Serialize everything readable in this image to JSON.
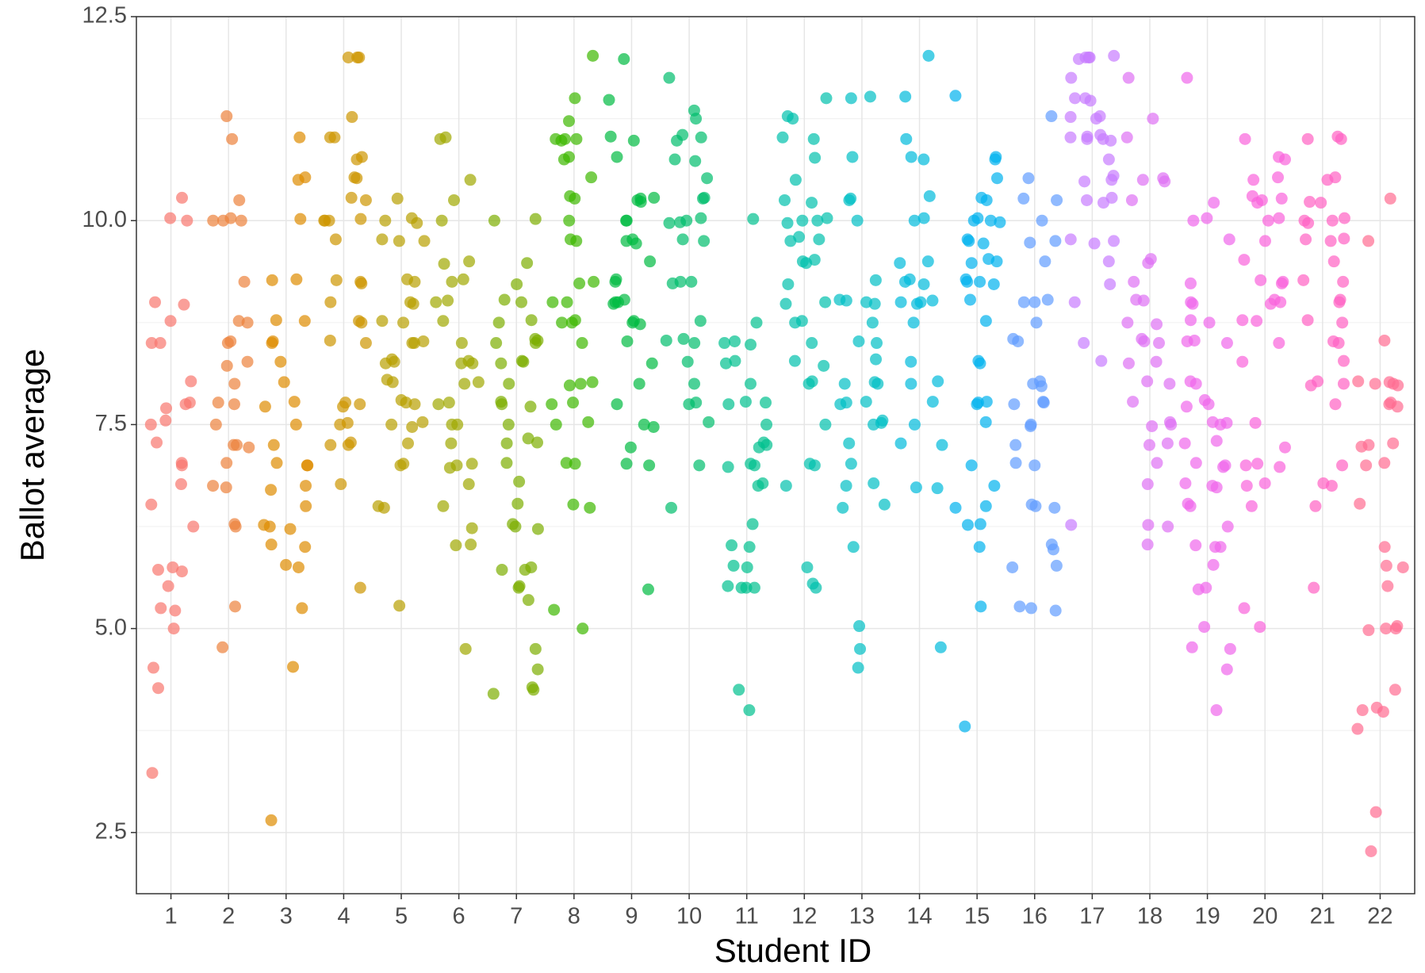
{
  "chart_data": {
    "type": "strip",
    "x_label": "Student ID",
    "y_label": "Ballot average",
    "categories": [
      "1",
      "2",
      "3",
      "4",
      "5",
      "6",
      "7",
      "8",
      "9",
      "10",
      "11",
      "12",
      "13",
      "14",
      "15",
      "16",
      "17",
      "18",
      "19",
      "20",
      "21",
      "22"
    ],
    "colors": [
      "#F8766D",
      "#EC823C",
      "#DE8C00",
      "#CD9600",
      "#B8A000",
      "#9FA800",
      "#7CAE00",
      "#3DB800",
      "#00BA42",
      "#00BE6C",
      "#00C08F",
      "#00C1AD",
      "#00BFC4",
      "#00BADB",
      "#00B2EE",
      "#619CFF",
      "#C77CFF",
      "#DE71F4",
      "#EF67EB",
      "#FA62DB",
      "#FF61C3",
      "#FF6C91"
    ],
    "alpha": 0.7,
    "values": [
      [
        10.28,
        10.0,
        9.0,
        8.97,
        8.77,
        8.5,
        8.5,
        8.03,
        7.77,
        7.75,
        7.55,
        7.5,
        7.28,
        7.03,
        7.0,
        6.77,
        6.52,
        6.25,
        5.75,
        5.72,
        5.52,
        5.25,
        5.22,
        5.0,
        4.52,
        4.27,
        3.23,
        10.03,
        7.7,
        5.7
      ],
      [
        11.28,
        11.0,
        10.25,
        10.03,
        10.0,
        10.0,
        9.25,
        8.77,
        8.75,
        8.52,
        8.5,
        8.27,
        8.22,
        7.77,
        7.75,
        7.5,
        7.25,
        7.22,
        7.03,
        6.75,
        6.73,
        6.28,
        6.25,
        5.27,
        4.77,
        10.0,
        8.0,
        7.25
      ],
      [
        11.02,
        10.53,
        10.5,
        10.02,
        9.28,
        9.27,
        8.78,
        8.77,
        8.52,
        8.5,
        8.27,
        8.02,
        7.78,
        7.72,
        7.5,
        7.25,
        7.03,
        7.0,
        7.0,
        6.75,
        6.7,
        6.5,
        6.27,
        6.25,
        6.22,
        6.03,
        6.0,
        5.78,
        5.75,
        5.25,
        4.53,
        2.65
      ],
      [
        12.0,
        12.0,
        12.0,
        11.27,
        11.02,
        11.02,
        10.78,
        10.75,
        10.53,
        10.52,
        10.28,
        10.25,
        10.02,
        10.0,
        10.0,
        10.0,
        9.77,
        9.27,
        9.25,
        9.23,
        9.0,
        8.77,
        8.75,
        8.53,
        8.5,
        7.77,
        7.75,
        7.72,
        7.52,
        7.5,
        7.28,
        7.25,
        7.25,
        6.77,
        5.5
      ],
      [
        10.27,
        10.03,
        10.0,
        9.97,
        9.77,
        9.75,
        9.75,
        9.28,
        9.25,
        9.0,
        8.98,
        8.77,
        8.75,
        8.52,
        8.5,
        8.5,
        8.3,
        8.27,
        8.25,
        8.05,
        8.02,
        7.8,
        7.77,
        7.75,
        7.53,
        7.5,
        7.47,
        7.27,
        7.02,
        7.0,
        6.5,
        6.48,
        5.28
      ],
      [
        11.02,
        11.0,
        10.5,
        10.25,
        10.0,
        9.5,
        9.47,
        9.28,
        9.25,
        9.02,
        9.0,
        8.77,
        8.5,
        8.28,
        8.25,
        8.25,
        8.02,
        8.0,
        7.77,
        7.75,
        7.5,
        7.5,
        7.27,
        7.02,
        7.0,
        6.97,
        6.77,
        6.5,
        6.23,
        6.03,
        6.02,
        4.75
      ],
      [
        10.02,
        10.0,
        9.48,
        9.22,
        9.03,
        9.0,
        8.78,
        8.75,
        8.55,
        8.53,
        8.5,
        8.5,
        8.28,
        8.27,
        8.25,
        8.0,
        7.78,
        7.75,
        7.72,
        7.5,
        7.33,
        7.28,
        7.27,
        7.03,
        6.8,
        6.53,
        6.28,
        6.25,
        6.22,
        5.75,
        5.72,
        5.72,
        5.52,
        5.5,
        5.35,
        4.75,
        4.5,
        4.28,
        4.25,
        4.2
      ],
      [
        12.02,
        11.5,
        11.22,
        11.0,
        11.0,
        11.0,
        10.98,
        10.78,
        10.75,
        10.53,
        10.3,
        10.27,
        10.0,
        9.77,
        9.75,
        9.25,
        9.23,
        9.0,
        9.0,
        8.78,
        8.75,
        8.75,
        8.5,
        8.02,
        8.0,
        7.98,
        7.77,
        7.75,
        7.53,
        7.5,
        7.03,
        7.02,
        6.52,
        6.48,
        5.23,
        5.0
      ],
      [
        11.98,
        11.48,
        11.03,
        10.98,
        10.78,
        10.28,
        10.27,
        10.25,
        10.23,
        10.0,
        10.0,
        9.77,
        9.75,
        9.72,
        9.5,
        9.28,
        9.25,
        9.03,
        9.0,
        9.0,
        8.98,
        8.77,
        8.75,
        8.73,
        8.52,
        8.25,
        8.0,
        7.75,
        7.5,
        7.47,
        7.22,
        7.02,
        7.0,
        5.48
      ],
      [
        11.75,
        11.35,
        11.25,
        11.05,
        11.02,
        10.98,
        10.75,
        10.73,
        10.52,
        10.28,
        10.27,
        10.03,
        10.0,
        9.98,
        9.97,
        9.77,
        9.75,
        9.25,
        9.25,
        9.23,
        8.77,
        8.55,
        8.53,
        8.5,
        8.27,
        8.0,
        7.77,
        7.75,
        7.53,
        7.0,
        6.48
      ],
      [
        10.02,
        8.75,
        8.52,
        8.5,
        8.48,
        8.28,
        8.25,
        8.0,
        7.78,
        7.77,
        7.75,
        7.5,
        7.28,
        7.25,
        7.22,
        7.02,
        7.0,
        6.98,
        6.78,
        6.75,
        6.28,
        6.02,
        6.0,
        5.77,
        5.75,
        5.52,
        5.5,
        5.5,
        5.5,
        4.25,
        4.0
      ],
      [
        11.5,
        11.28,
        11.25,
        11.02,
        11.0,
        10.77,
        10.5,
        10.25,
        10.22,
        10.03,
        10.0,
        10.0,
        9.97,
        9.8,
        9.77,
        9.75,
        9.52,
        9.5,
        9.48,
        9.22,
        9.0,
        8.98,
        8.77,
        8.75,
        8.5,
        8.28,
        8.22,
        8.03,
        8.0,
        7.5,
        7.02,
        7.0,
        6.75,
        5.75,
        5.55,
        5.5
      ],
      [
        11.5,
        11.52,
        10.78,
        10.27,
        10.25,
        10.0,
        9.27,
        9.03,
        9.02,
        9.0,
        8.98,
        8.75,
        8.52,
        8.5,
        8.3,
        8.02,
        8.0,
        8.0,
        7.78,
        7.77,
        7.75,
        7.55,
        7.52,
        7.5,
        7.27,
        7.02,
        6.78,
        6.75,
        6.52,
        6.48,
        6.0,
        5.03,
        4.75,
        4.52
      ],
      [
        12.02,
        11.52,
        11.0,
        10.78,
        10.75,
        10.3,
        10.03,
        10.0,
        9.5,
        9.48,
        9.28,
        9.25,
        9.22,
        9.02,
        9.0,
        9.0,
        8.98,
        8.75,
        8.27,
        8.03,
        8.0,
        7.78,
        7.5,
        7.27,
        7.25,
        6.73,
        6.72,
        4.77
      ],
      [
        11.53,
        10.78,
        10.75,
        10.52,
        10.28,
        10.25,
        10.03,
        10.0,
        10.0,
        9.98,
        9.77,
        9.75,
        9.72,
        9.53,
        9.5,
        9.48,
        9.28,
        9.25,
        9.25,
        9.22,
        9.03,
        8.77,
        8.28,
        8.25,
        7.78,
        7.77,
        7.75,
        7.53,
        7.0,
        6.75,
        6.5,
        6.48,
        6.28,
        6.27,
        6.0,
        5.27,
        3.8
      ],
      [
        11.28,
        10.52,
        10.27,
        10.25,
        10.0,
        9.75,
        9.73,
        9.5,
        9.03,
        9.0,
        9.0,
        8.75,
        8.55,
        8.52,
        8.03,
        8.0,
        7.97,
        7.78,
        7.77,
        7.75,
        7.5,
        7.48,
        7.25,
        7.03,
        7.0,
        6.52,
        6.5,
        6.48,
        6.03,
        5.97,
        5.77,
        5.75,
        5.27,
        5.25,
        5.22
      ],
      [
        12.02,
        12.0,
        12.0,
        12.0,
        11.98,
        11.75,
        11.5,
        11.5,
        11.47,
        11.28,
        11.27,
        11.25,
        11.05,
        11.03,
        11.02,
        11.0,
        11.0,
        10.98,
        10.75,
        10.55,
        10.5,
        10.48,
        10.28,
        10.25,
        10.22,
        9.77,
        9.75,
        9.72,
        9.5,
        9.22,
        9.0,
        8.5,
        8.28,
        6.27
      ],
      [
        11.75,
        11.25,
        11.02,
        10.52,
        10.5,
        10.48,
        10.25,
        9.53,
        9.48,
        9.25,
        9.03,
        9.02,
        8.75,
        8.73,
        8.55,
        8.52,
        8.5,
        8.27,
        8.25,
        8.03,
        8.0,
        7.78,
        7.53,
        7.5,
        7.48,
        7.27,
        7.25,
        7.03,
        6.77,
        6.27,
        6.25,
        6.03
      ],
      [
        11.75,
        10.22,
        10.03,
        10.0,
        9.77,
        9.23,
        9.0,
        8.98,
        8.78,
        8.75,
        8.53,
        8.52,
        8.5,
        8.03,
        8.0,
        7.8,
        7.75,
        7.72,
        7.53,
        7.52,
        7.5,
        7.3,
        7.27,
        7.03,
        7.0,
        6.98,
        6.78,
        6.75,
        6.73,
        6.53,
        6.5,
        6.25,
        6.02,
        6.0,
        6.0,
        5.78,
        5.5,
        5.48,
        5.02,
        4.77,
        4.75,
        4.5,
        4.0
      ],
      [
        11.0,
        10.78,
        10.75,
        10.53,
        10.5,
        10.3,
        10.27,
        10.25,
        10.22,
        10.03,
        10.0,
        9.75,
        9.52,
        9.27,
        9.25,
        9.23,
        9.03,
        9.0,
        8.98,
        8.78,
        8.77,
        8.5,
        8.27,
        7.52,
        7.22,
        7.02,
        7.0,
        6.98,
        6.78,
        6.75,
        6.5,
        5.25,
        5.02
      ],
      [
        11.03,
        11.0,
        11.0,
        10.53,
        10.5,
        10.23,
        10.22,
        10.03,
        10.0,
        10.0,
        9.97,
        9.78,
        9.77,
        9.75,
        9.5,
        9.27,
        9.25,
        9.03,
        9.0,
        8.78,
        8.75,
        8.52,
        8.5,
        8.28,
        8.03,
        8.0,
        7.98,
        7.75,
        7.0,
        6.78,
        6.75,
        6.5,
        5.5
      ],
      [
        10.27,
        9.75,
        8.53,
        8.03,
        8.02,
        8.0,
        8.0,
        7.98,
        7.77,
        7.75,
        7.72,
        7.27,
        7.25,
        7.23,
        7.03,
        7.0,
        6.53,
        6.0,
        5.77,
        5.75,
        5.52,
        5.03,
        5.0,
        5.0,
        4.98,
        4.25,
        4.03,
        4.0,
        3.98,
        3.77,
        2.75,
        2.27
      ]
    ],
    "ylim": [
      1.75,
      12.5
    ],
    "yticks": [
      2.5,
      {
        "value": 5,
        "label": "5.0"
      },
      7.5,
      {
        "value": 10,
        "label": "10.0"
      },
      12.5
    ],
    "y_minor_ticks": [
      3.75,
      6.25,
      8.75,
      11.25
    ],
    "grid": true
  }
}
